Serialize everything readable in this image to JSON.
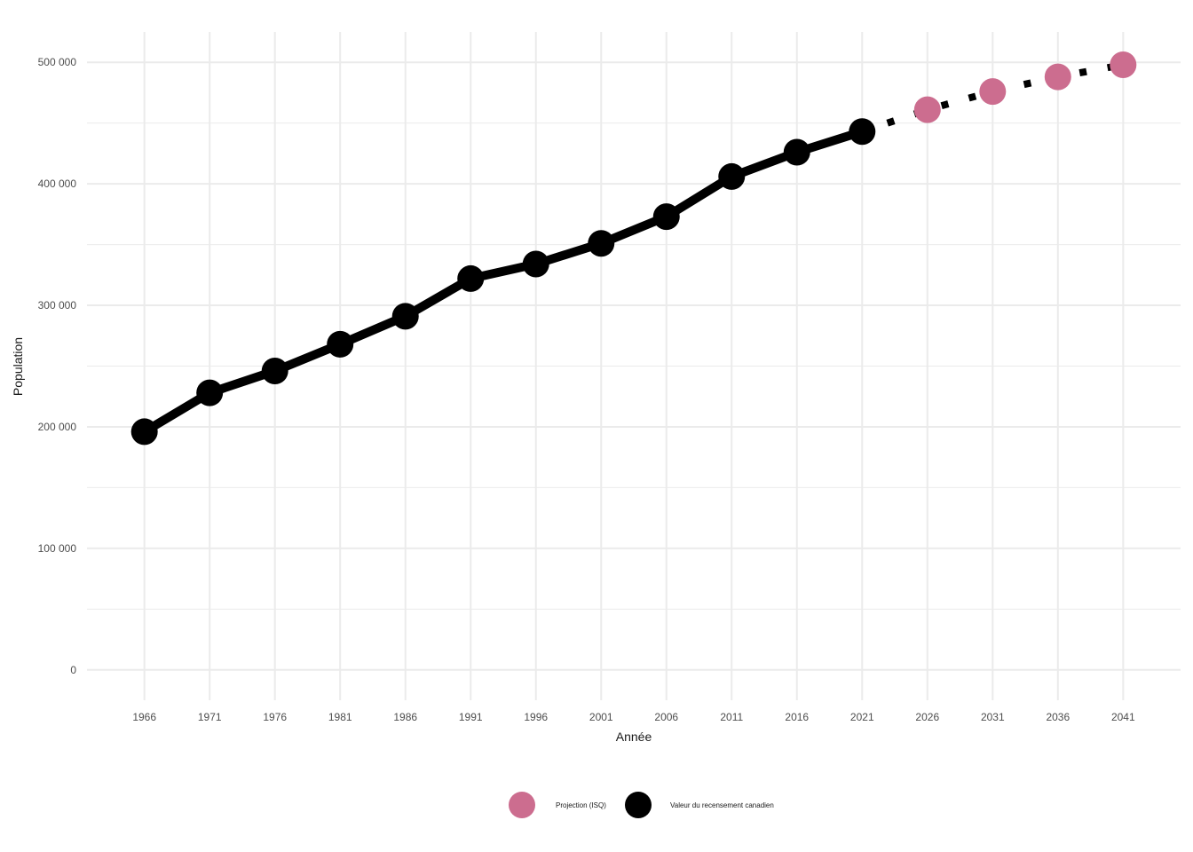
{
  "chart_data": {
    "type": "line",
    "xlabel": "Année",
    "ylabel": "Population",
    "x": [
      1966,
      1971,
      1976,
      1981,
      1986,
      1991,
      1996,
      2001,
      2006,
      2011,
      2016,
      2021,
      2026,
      2031,
      2036,
      2041
    ],
    "x_ticks": [
      "1966",
      "1971",
      "1976",
      "1981",
      "1986",
      "1991",
      "1996",
      "2001",
      "2006",
      "2011",
      "2016",
      "2021",
      "2026",
      "2031",
      "2036",
      "2041"
    ],
    "xlim": [
      1961.6,
      2045.4
    ],
    "ylim": [
      -25000,
      525000
    ],
    "y_ticks": [
      0,
      100000,
      200000,
      300000,
      400000,
      500000
    ],
    "y_tick_labels": [
      "0",
      "100 000",
      "200 000",
      "300 000",
      "400 000",
      "500 000"
    ],
    "grid": true,
    "legend_position": "bottom",
    "series": [
      {
        "name": "Valeur du recensement canadien",
        "color": "#000000",
        "line_style": "solid",
        "x": [
          1966,
          1971,
          1976,
          1981,
          1986,
          1991,
          1996,
          2001,
          2006,
          2011,
          2016,
          2021
        ],
        "values": [
          196000,
          228000,
          246000,
          268000,
          291000,
          322000,
          334000,
          351000,
          373000,
          406000,
          426000,
          443000
        ]
      },
      {
        "name": "Projection (ISQ)",
        "color": "#cc6d8f",
        "line_style": "dotted",
        "line_color": "#000000",
        "x": [
          2026,
          2031,
          2036,
          2041
        ],
        "values": [
          461000,
          476000,
          488000,
          498000
        ]
      }
    ],
    "legend": [
      {
        "label": "Projection (ISQ)",
        "color": "#cc6d8f"
      },
      {
        "label": "Valeur du recensement canadien",
        "color": "#000000"
      }
    ]
  }
}
